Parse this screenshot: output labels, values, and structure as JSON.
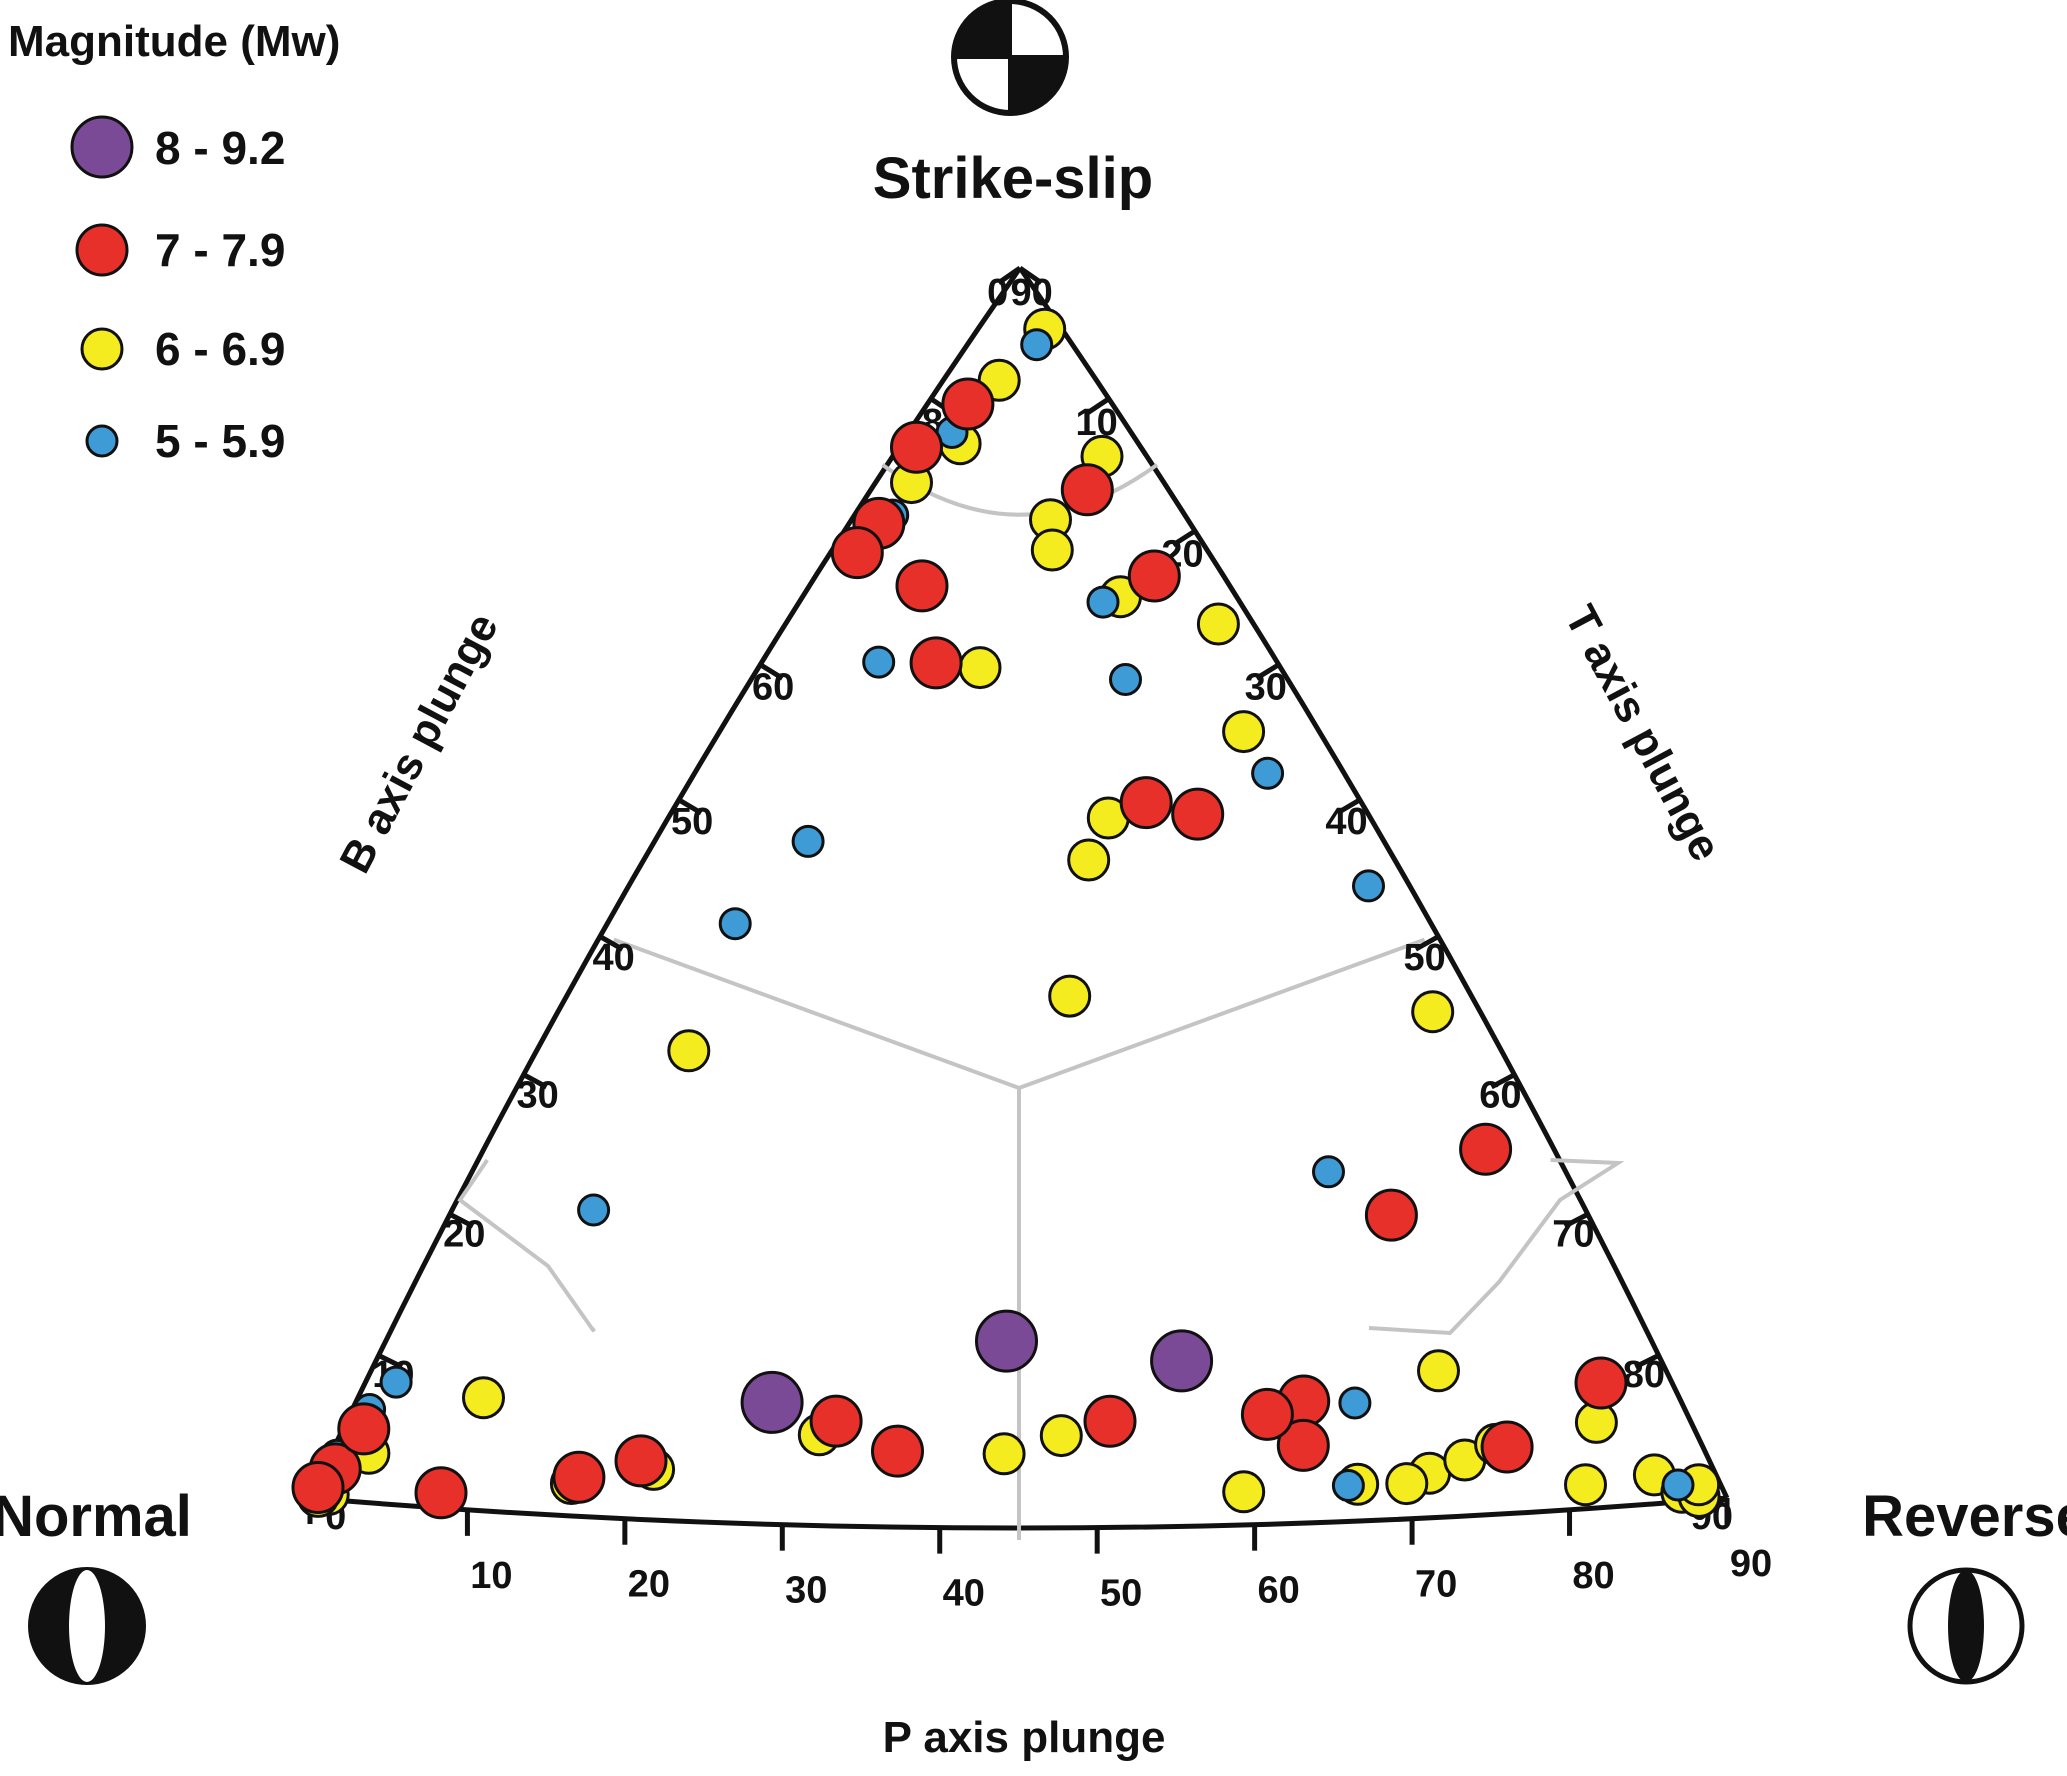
{
  "chart_data": {
    "type": "scatter",
    "title": "",
    "legend": {
      "title": "Magnitude (Mw)",
      "placement": "top-left",
      "entries": [
        {
          "label": "8 - 9.2",
          "color": "#7b4a97"
        },
        {
          "label": "7 - 7.9",
          "color": "#e8302a"
        },
        {
          "label": "6 - 6.9",
          "color": "#f4ec1f"
        },
        {
          "label": "5 - 5.9",
          "color": "#3f9bd5"
        }
      ]
    },
    "corners": {
      "top": "Strike-slip",
      "left": "Normal",
      "right": "Reverse"
    },
    "axes": {
      "b": {
        "label": "B axis plunge",
        "ticks": [
          "0",
          "10",
          "20",
          "30",
          "40",
          "50",
          "60",
          "70",
          "80",
          "90"
        ]
      },
      "t": {
        "label": "T axis plunge",
        "ticks": [
          "0",
          "10",
          "20",
          "30",
          "40",
          "50",
          "60",
          "70",
          "80",
          "90"
        ]
      },
      "p": {
        "label": "P axis plunge",
        "ticks": [
          "10",
          "20",
          "30",
          "40",
          "50",
          "60",
          "70",
          "80",
          "90"
        ]
      }
    },
    "fields": [
      "P",
      "T",
      "B"
    ],
    "series": [
      {
        "magnitude": "8 - 9.2",
        "color": "#7b4a97",
        "points": [
          {
            "p": 52,
            "t": 32,
            "b": 16
          },
          {
            "p": 42,
            "t": 41,
            "b": 21
          },
          {
            "p": 36,
            "t": 50,
            "b": 20
          }
        ]
      },
      {
        "magnitude": "7 - 7.9",
        "color": "#e8302a",
        "points": [
          {
            "p": 24,
            "t": 0,
            "b": 80
          },
          {
            "p": 18,
            "t": 8,
            "b": 74
          },
          {
            "p": 12,
            "t": 22,
            "b": 66
          },
          {
            "p": 28,
            "t": 4,
            "b": 68
          },
          {
            "p": 30,
            "t": 2,
            "b": 66
          },
          {
            "p": 10,
            "t": 28,
            "b": 60
          },
          {
            "p": 18,
            "t": 36,
            "b": 48
          },
          {
            "p": 27,
            "t": 18,
            "b": 53
          },
          {
            "p": 26,
            "t": 14,
            "b": 58
          },
          {
            "p": 20,
            "t": 32,
            "b": 46
          },
          {
            "p": 10,
            "t": 58,
            "b": 33
          },
          {
            "p": 20,
            "t": 52,
            "b": 28
          },
          {
            "p": 12,
            "t": 70,
            "b": 18
          },
          {
            "p": 22,
            "t": 68,
            "b": 12
          },
          {
            "p": 63,
            "t": 4,
            "b": 8
          },
          {
            "p": 70,
            "t": 2,
            "b": 5
          },
          {
            "p": 58,
            "t": 5,
            "b": 12
          },
          {
            "p": 50,
            "t": 14,
            "b": 3
          },
          {
            "p": 46,
            "t": 20,
            "b": 6
          },
          {
            "p": 44,
            "t": 22,
            "b": 8
          },
          {
            "p": 40,
            "t": 29,
            "b": 12
          },
          {
            "p": 42,
            "t": 34,
            "b": 10
          },
          {
            "p": 30,
            "t": 53,
            "b": 16
          },
          {
            "p": 32,
            "t": 56,
            "b": 12
          },
          {
            "p": 38,
            "t": 45,
            "b": 14
          },
          {
            "p": 30,
            "t": 48,
            "b": 14
          }
        ]
      },
      {
        "magnitude": "6 - 6.9",
        "color": "#f4ec1f",
        "points": [
          {
            "p": 5,
            "t": 12,
            "b": 80
          },
          {
            "p": 14,
            "t": 10,
            "b": 70
          },
          {
            "p": 24,
            "t": 6,
            "b": 66
          },
          {
            "p": 8,
            "t": 22,
            "b": 70
          },
          {
            "p": 20,
            "t": 10,
            "b": 70
          },
          {
            "p": 4,
            "t": 34,
            "b": 62
          },
          {
            "p": 16,
            "t": 20,
            "b": 60
          },
          {
            "p": 17,
            "t": 21,
            "b": 58
          },
          {
            "p": 14,
            "t": 26,
            "b": 56
          },
          {
            "p": 10,
            "t": 36,
            "b": 52
          },
          {
            "p": 24,
            "t": 20,
            "b": 50
          },
          {
            "p": 22,
            "t": 30,
            "b": 44
          },
          {
            "p": 6,
            "t": 52,
            "b": 40
          },
          {
            "p": 24,
            "t": 30,
            "b": 42
          },
          {
            "p": 28,
            "t": 32,
            "b": 36
          },
          {
            "p": 38,
            "t": 14,
            "b": 30
          },
          {
            "p": 82,
            "t": 2,
            "b": 5
          },
          {
            "p": 76,
            "t": 6,
            "b": 3
          },
          {
            "p": 78,
            "t": 4,
            "b": 2
          },
          {
            "p": 72,
            "t": 4,
            "b": 4
          },
          {
            "p": 62,
            "t": 8,
            "b": 10
          },
          {
            "p": 62,
            "t": 16,
            "b": 16
          },
          {
            "p": 60,
            "t": 24,
            "b": 6
          },
          {
            "p": 52,
            "t": 26,
            "b": 8
          },
          {
            "p": 46,
            "t": 32,
            "b": 12
          },
          {
            "p": 40,
            "t": 39,
            "b": 10
          },
          {
            "p": 38,
            "t": 41,
            "b": 12
          },
          {
            "p": 30,
            "t": 58,
            "b": 6
          },
          {
            "p": 35,
            "t": 53,
            "b": 4
          },
          {
            "p": 26,
            "t": 60,
            "b": 8
          },
          {
            "p": 27,
            "t": 58,
            "b": 6
          },
          {
            "p": 24,
            "t": 62,
            "b": 10
          },
          {
            "p": 22,
            "t": 56,
            "b": 18
          },
          {
            "p": 18,
            "t": 72,
            "b": 6
          },
          {
            "p": 12,
            "t": 80,
            "b": 8
          },
          {
            "p": 10,
            "t": 84,
            "b": 4
          },
          {
            "p": 8,
            "t": 86,
            "b": 2
          },
          {
            "p": 7,
            "t": 84,
            "b": 6
          },
          {
            "p": 14,
            "t": 66,
            "b": 14
          },
          {
            "p": 22,
            "t": 64,
            "b": 12
          }
        ]
      },
      {
        "magnitude": "5 - 5.9",
        "color": "#3f9bd5",
        "points": [
          {
            "p": 8,
            "t": 12,
            "b": 76
          },
          {
            "p": 20,
            "t": 8,
            "b": 70
          },
          {
            "p": 26,
            "t": 6,
            "b": 64
          },
          {
            "p": 16,
            "t": 26,
            "b": 58
          },
          {
            "p": 18,
            "t": 30,
            "b": 56
          },
          {
            "p": 30,
            "t": 14,
            "b": 54
          },
          {
            "p": 10,
            "t": 38,
            "b": 50
          },
          {
            "p": 36,
            "t": 16,
            "b": 44
          },
          {
            "p": 40,
            "t": 14,
            "b": 40
          },
          {
            "p": 60,
            "t": 4,
            "b": 14
          },
          {
            "p": 58,
            "t": 6,
            "b": 16
          },
          {
            "p": 66,
            "t": 2,
            "b": 10
          },
          {
            "p": 4,
            "t": 46,
            "b": 46
          },
          {
            "p": 22,
            "t": 48,
            "b": 30
          },
          {
            "p": 28,
            "t": 56,
            "b": 16
          },
          {
            "p": 32,
            "t": 62,
            "b": 6
          },
          {
            "p": 10,
            "t": 84,
            "b": 6
          },
          {
            "p": 56,
            "t": 6,
            "b": 12
          },
          {
            "p": 44,
            "t": 14,
            "b": 24
          }
        ]
      }
    ],
    "grid": false
  }
}
